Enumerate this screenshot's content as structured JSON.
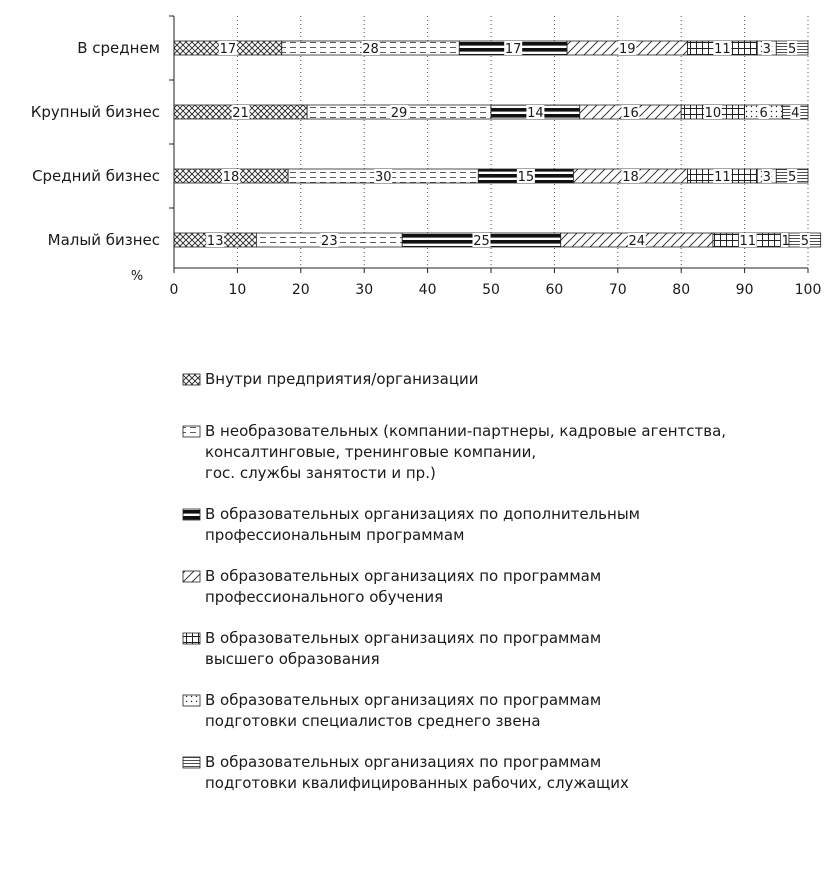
{
  "chart_data": {
    "type": "bar",
    "orientation": "horizontal",
    "stacked": true,
    "unit_label": "%",
    "xlim": [
      0,
      100
    ],
    "x_ticks": [
      "0",
      "10",
      "20",
      "30",
      "40",
      "50",
      "60",
      "70",
      "80",
      "90",
      "100"
    ],
    "grid": "vertical dotted",
    "legend_position": "bottom",
    "categories": [
      "В среднем",
      "Крупный бизнес",
      "Средний бизнес",
      "Малый бизнес"
    ],
    "series": [
      {
        "name": "Внутри предприятия/организации",
        "pattern": "crosshatch",
        "values": [
          17,
          21,
          18,
          13
        ]
      },
      {
        "name": "В необразовательных (компании-партнеры, кадровые агентства, консалтинговые, тренинговые компании, гос. службы занятости и пр.)",
        "pattern": "dashed-lines",
        "values": [
          28,
          29,
          30,
          23
        ]
      },
      {
        "name": "В образовательных организациях по дополнительным профессиональным программам",
        "pattern": "heavy-horizontal",
        "values": [
          17,
          14,
          15,
          25
        ]
      },
      {
        "name": "В образовательных организациях по программам профессионального обучения",
        "pattern": "diagonal",
        "values": [
          19,
          16,
          18,
          24
        ]
      },
      {
        "name": "В образовательных организациях по программам высшего образования",
        "pattern": "grid",
        "values": [
          11,
          10,
          11,
          11
        ]
      },
      {
        "name": "В образовательных организациях по программам подготовки специалистов среднего звена",
        "pattern": "dots",
        "values": [
          3,
          6,
          3,
          1
        ]
      },
      {
        "name": "В образовательных организациях по программам подготовки квалифицированных рабочих, служащих",
        "pattern": "thin-horizontal",
        "values": [
          5,
          4,
          5,
          5
        ]
      }
    ]
  },
  "legend_lines": [
    [
      "Внутри предприятия/организации"
    ],
    [
      "В необразовательных (компании-партнеры, кадровые агентства,",
      "консалтинговые, тренинговые компании,",
      "гос. службы занятости и пр.)"
    ],
    [
      "В образовательных организациях по дополнительным",
      "профессиональным программам"
    ],
    [
      "В образовательных организациях по программам",
      "профессионального обучения"
    ],
    [
      "В образовательных организациях по программам",
      "высшего образования"
    ],
    [
      "В образовательных организациях по программам",
      "подготовки специалистов среднего звена"
    ],
    [
      "В образовательных организациях по программам",
      "подготовки квалифицированных рабочих, служащих"
    ]
  ]
}
